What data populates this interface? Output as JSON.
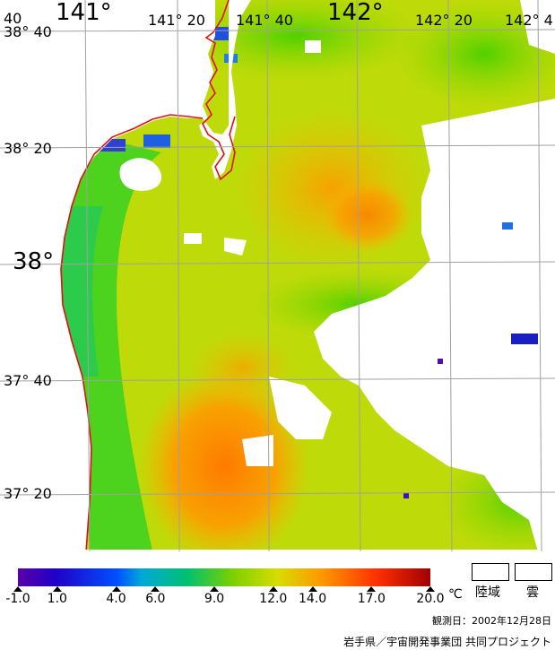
{
  "map": {
    "lon_labels": [
      "141°",
      "141° 20",
      "141° 40",
      "142°",
      "142° 20",
      "142° 4"
    ],
    "lat_labels": [
      "38° 40",
      "38° 20",
      "38°",
      "37° 40",
      "37° 20"
    ],
    "corner_label": "40"
  },
  "legend": {
    "ticks": [
      "-1.0",
      "1.0",
      "4.0",
      "6.0",
      "9.0",
      "12.0",
      "14.0",
      "17.0",
      "20.0"
    ],
    "min_value": -1.0,
    "max_value": 20.0,
    "unit": "℃",
    "land_label": "陸域",
    "cloud_label": "雲"
  },
  "observation_date": "観測日：2002年12月28日",
  "credit": "岩手県／宇宙開発事業団 共同プロジェクト",
  "colors": {
    "coast_line": "#e01010",
    "grid": "#a0a0a0",
    "land": "#ffffff",
    "cloud": "#ffffff"
  }
}
